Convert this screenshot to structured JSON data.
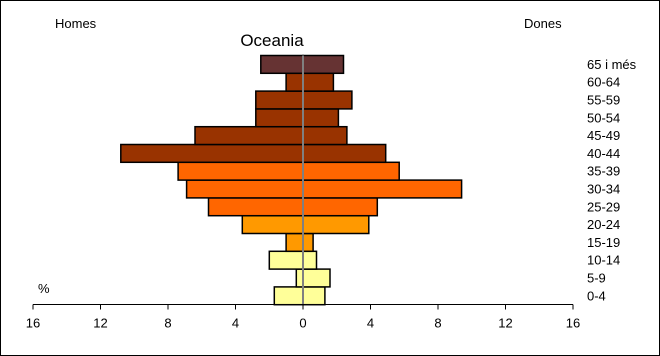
{
  "chart_data": {
    "type": "bar",
    "title": "Oceania",
    "left_label": "Homes",
    "right_label": "Dones",
    "unit_label": "%",
    "categories": [
      "0-4",
      "5-9",
      "10-14",
      "15-19",
      "20-24",
      "25-29",
      "30-34",
      "35-39",
      "40-44",
      "45-49",
      "50-54",
      "55-59",
      "60-64",
      "65 i més"
    ],
    "series": [
      {
        "name": "Homes",
        "values": [
          1.7,
          0.4,
          2.0,
          1.0,
          3.6,
          5.6,
          6.9,
          7.4,
          10.8,
          6.4,
          2.8,
          2.8,
          1.0,
          2.5
        ]
      },
      {
        "name": "Dones",
        "values": [
          1.3,
          1.6,
          0.8,
          0.6,
          3.9,
          4.4,
          9.4,
          5.7,
          4.9,
          2.6,
          2.1,
          2.9,
          1.8,
          2.4
        ]
      }
    ],
    "bar_colors": [
      "#ffff99",
      "#ffff99",
      "#ffff99",
      "#ff9900",
      "#ff9900",
      "#ff6600",
      "#ff6600",
      "#ff6600",
      "#993300",
      "#993300",
      "#993300",
      "#993300",
      "#993300",
      "#663333"
    ],
    "xticks": [
      "16",
      "12",
      "8",
      "4",
      "0",
      "4",
      "8",
      "12",
      "16"
    ],
    "xlim": [
      -16,
      16
    ],
    "grid": false,
    "legend": "none"
  }
}
